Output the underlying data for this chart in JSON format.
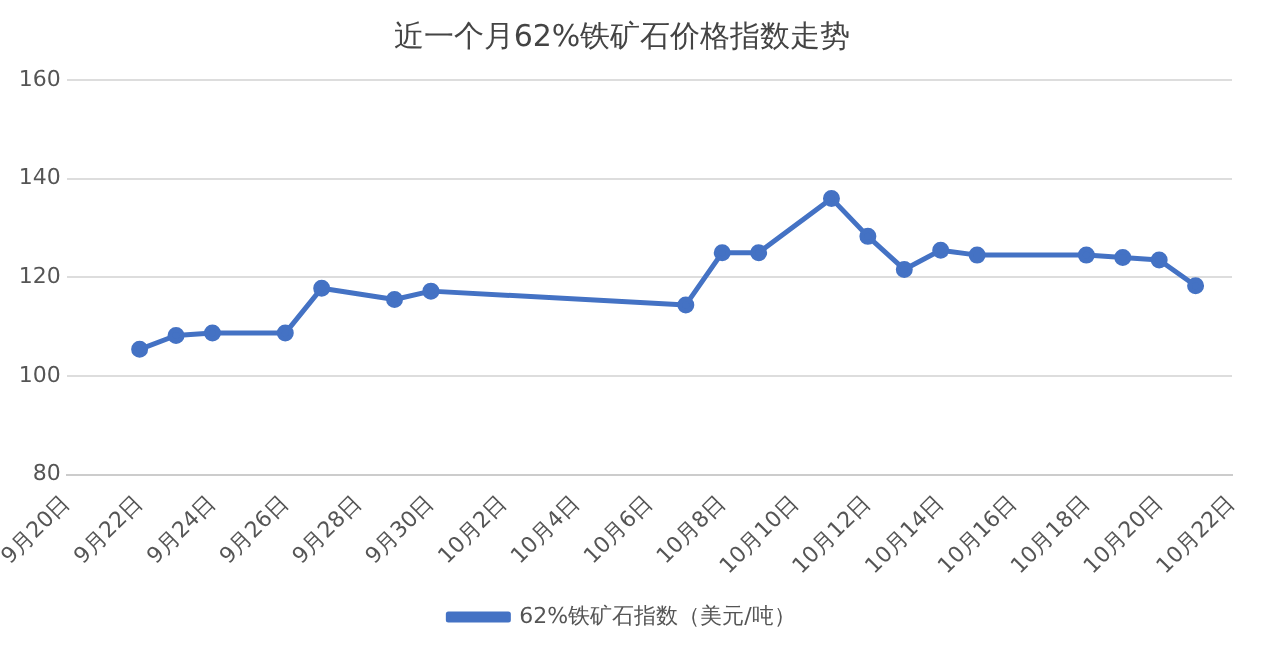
{
  "chart_data": {
    "type": "line",
    "title": "近一个月62%铁矿石价格指数走势",
    "x": [
      "--09-22",
      "--09-23",
      "--09-24",
      "--09-26",
      "--09-27",
      "--09-29",
      "--09-30",
      "--10-07",
      "--10-08",
      "--10-09",
      "--10-11",
      "--10-12",
      "--10-13",
      "--10-14",
      "--10-15",
      "--10-18",
      "--10-19",
      "--10-20",
      "--10-21"
    ],
    "series": [
      {
        "name": "62%铁矿石指数（美元/吨）",
        "color": "#4472c4",
        "values": [
          105.4,
          108.2,
          108.7,
          108.7,
          117.8,
          115.5,
          117.2,
          114.4,
          125,
          125,
          136,
          128.3,
          121.6,
          125.5,
          124.5,
          124.5,
          124,
          123.5,
          118.3
        ]
      }
    ],
    "xlim": [
      "--09-20",
      "--10-22"
    ],
    "xticks": [
      {
        "value": "--09-20",
        "label": "9月20日"
      },
      {
        "value": "--09-22",
        "label": "9月22日"
      },
      {
        "value": "--09-24",
        "label": "9月24日"
      },
      {
        "value": "--09-26",
        "label": "9月26日"
      },
      {
        "value": "--09-28",
        "label": "9月28日"
      },
      {
        "value": "--09-30",
        "label": "9月30日"
      },
      {
        "value": "--10-02",
        "label": "10月2日"
      },
      {
        "value": "--10-04",
        "label": "10月4日"
      },
      {
        "value": "--10-06",
        "label": "10月6日"
      },
      {
        "value": "--10-08",
        "label": "10月8日"
      },
      {
        "value": "--10-10",
        "label": "10月10日"
      },
      {
        "value": "--10-12",
        "label": "10月12日"
      },
      {
        "value": "--10-14",
        "label": "10月14日"
      },
      {
        "value": "--10-16",
        "label": "10月16日"
      },
      {
        "value": "--10-18",
        "label": "10月18日"
      },
      {
        "value": "--10-20",
        "label": "10月20日"
      },
      {
        "value": "--10-22",
        "label": "10月22日"
      }
    ],
    "ylim": [
      80,
      160
    ],
    "yticks": [
      80,
      100,
      120,
      140,
      160
    ],
    "grid": "y",
    "legend": "bottom",
    "marker": "circle",
    "line_style": "solid"
  }
}
